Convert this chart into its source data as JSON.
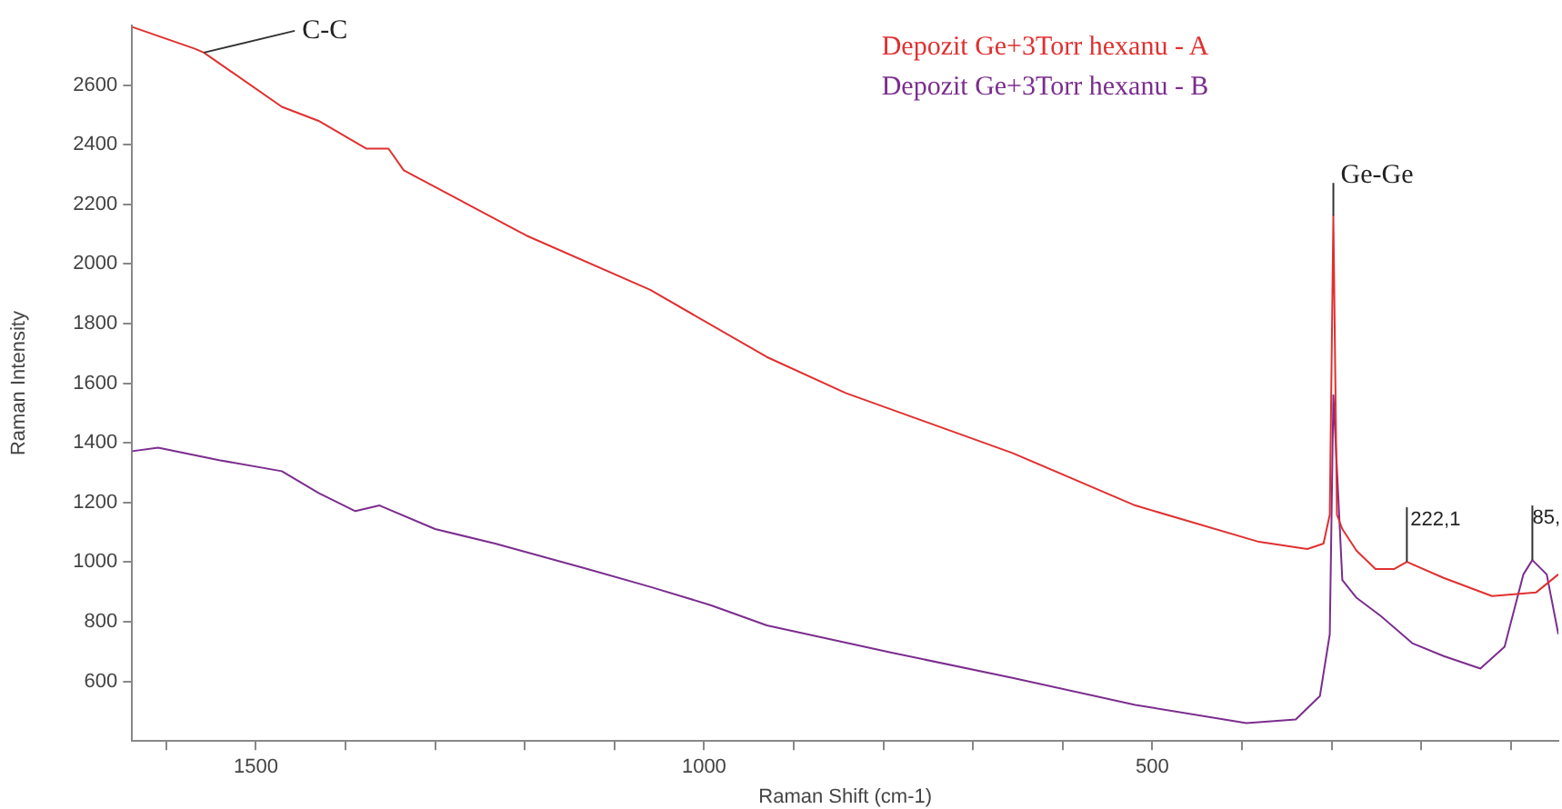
{
  "chart_data": {
    "type": "line",
    "xlabel": "Raman Shift (cm-1)",
    "ylabel": "Raman Intensity",
    "xlim": [
      1638,
      47
    ],
    "ylim": [
      400,
      2800
    ],
    "xticks": [
      {
        "value": 1600,
        "label": null
      },
      1500,
      {
        "value": 1400,
        "label": null
      },
      {
        "value": 1300,
        "label": null
      },
      {
        "value": 1200,
        "label": null
      },
      {
        "value": 1100,
        "label": null
      },
      1000,
      {
        "value": 900,
        "label": null
      },
      {
        "value": 800,
        "label": null
      },
      {
        "value": 700,
        "label": null
      },
      {
        "value": 600,
        "label": null
      },
      500,
      {
        "value": 400,
        "label": null
      },
      {
        "value": 300,
        "label": null
      },
      {
        "value": 200,
        "label": null
      },
      {
        "value": 100,
        "label": null
      }
    ],
    "yticks": [
      600,
      800,
      1000,
      1200,
      1400,
      1600,
      1800,
      2000,
      2200,
      2400,
      2600
    ],
    "grid": false,
    "legend": "top",
    "marker": "none",
    "line_style": "solid",
    "series": [
      {
        "name": "Depozit Ge+3Torr hexanu - A",
        "color": "#e03030",
        "x": [
          1638,
          1568,
          1558,
          1471,
          1430,
          1377,
          1352,
          1335,
          1198,
          1060,
          930,
          842,
          656,
          519,
          381,
          327,
          309,
          302,
          298,
          294,
          288,
          272,
          251,
          230,
          216,
          175,
          121,
          72,
          47
        ],
        "values": [
          2795,
          2722,
          2709,
          2527,
          2480,
          2387,
          2387,
          2314,
          2095,
          1913,
          1688,
          1567,
          1366,
          1190,
          1068,
          1044,
          1062,
          1159,
          2162,
          1159,
          1111,
          1038,
          977,
          977,
          1001,
          947,
          886,
          898,
          959
        ]
      },
      {
        "name": "Depozit Ge+3Torr hexanu - B",
        "color": "#7b2d8e",
        "x": [
          1638,
          1609,
          1541,
          1471,
          1430,
          1389,
          1362,
          1300,
          1233,
          1130,
          1060,
          992,
          930,
          792,
          656,
          519,
          395,
          340,
          313,
          302,
          298,
          288,
          272,
          245,
          210,
          175,
          134,
          107,
          86,
          76,
          60,
          47
        ],
        "values": [
          1372,
          1384,
          1342,
          1305,
          1232,
          1171,
          1190,
          1111,
          1062,
          977,
          917,
          855,
          788,
          697,
          612,
          521,
          460,
          472,
          551,
          758,
          1560,
          940,
          880,
          819,
          728,
          685,
          643,
          716,
          959,
          1007,
          959,
          758
        ]
      }
    ],
    "annotations": [
      {
        "text": "C-C",
        "x": 1558,
        "y": 2709
      },
      {
        "text": "Ge-Ge",
        "x": 298,
        "y": 2162
      },
      {
        "text": "222,1",
        "x": 216,
        "y": 1001
      },
      {
        "text": "85,",
        "x": 76,
        "y": 1007
      }
    ]
  }
}
